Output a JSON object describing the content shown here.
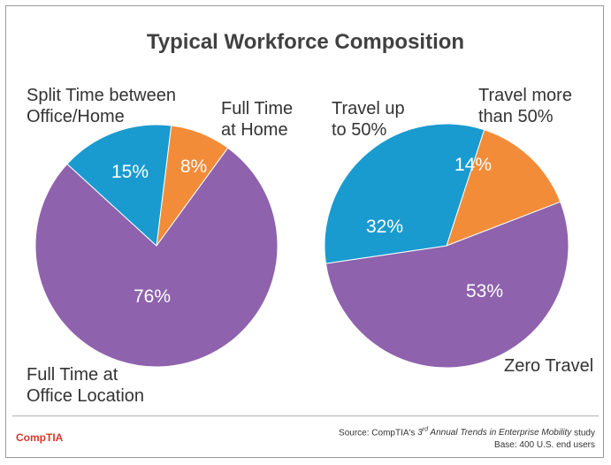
{
  "title": "Typical Workforce Composition",
  "chart_data": [
    {
      "type": "pie",
      "name": "Work location",
      "slices": [
        {
          "label": "Full Time at Home",
          "value": 8,
          "display": "8%",
          "color": "#f28c38"
        },
        {
          "label": "Full Time at Office Location",
          "value": 76,
          "display": "76%",
          "color": "#8e62ad"
        },
        {
          "label": "Split Time between Office/Home",
          "value": 15,
          "display": "15%",
          "color": "#1a9bcf"
        }
      ],
      "labels": {
        "split": [
          "Split Time between",
          "Office/Home"
        ],
        "home": [
          "Full Time",
          "at Home"
        ],
        "office": [
          "Full Time at",
          "Office Location"
        ]
      }
    },
    {
      "type": "pie",
      "name": "Travel",
      "slices": [
        {
          "label": "Travel more than 50%",
          "value": 14,
          "display": "14%",
          "color": "#f28c38"
        },
        {
          "label": "Zero Travel",
          "value": 53,
          "display": "53%",
          "color": "#8e62ad"
        },
        {
          "label": "Travel up to 50%",
          "value": 32,
          "display": "32%",
          "color": "#1a9bcf"
        }
      ],
      "labels": {
        "up": [
          "Travel up",
          "to 50%"
        ],
        "more": [
          "Travel more",
          "than 50%"
        ],
        "zero": [
          "Zero Travel"
        ]
      }
    }
  ],
  "footer": {
    "logo": "CompTIA",
    "source_prefix": "Source: CompTIA's ",
    "source_ordinal": "3",
    "source_sup": "rd",
    "source_italic": " Annual Trends in Enterprise Mobility",
    "source_suffix": " study",
    "base": "Base: 400 U.S. end users"
  }
}
